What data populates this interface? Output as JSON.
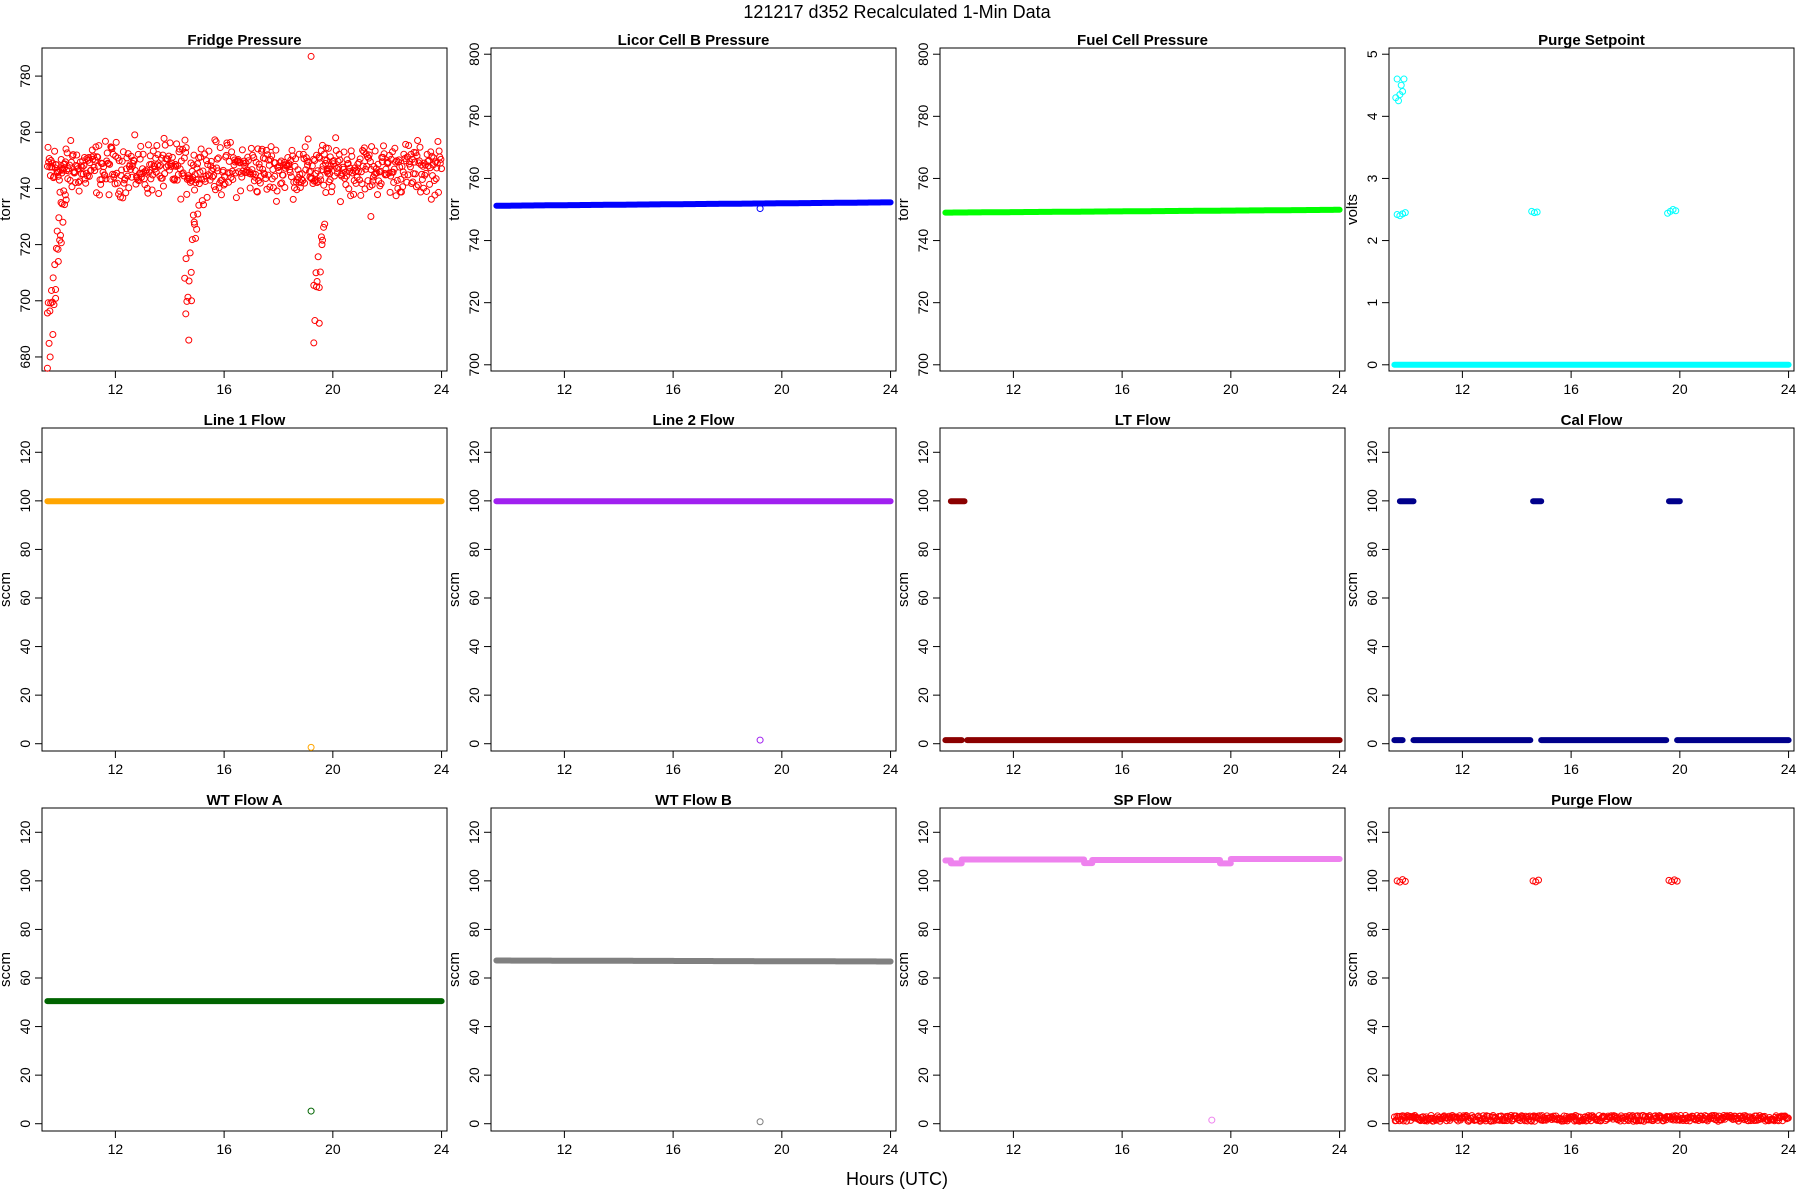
{
  "figure": {
    "title": "121217   d352   Recalculated 1-Min Data",
    "xlabel": "Hours (UTC)"
  },
  "chart_data": [
    {
      "type": "scatter",
      "title": "Fridge Pressure",
      "xlabel": "",
      "ylabel": "torr",
      "xlim": [
        9.3,
        24.2
      ],
      "ylim": [
        675,
        790
      ],
      "xticks": [
        12,
        16,
        20,
        24
      ],
      "yticks": [
        680,
        700,
        720,
        740,
        760,
        780
      ],
      "series": [
        {
          "color": "#ff0000",
          "pattern": "fridge"
        }
      ],
      "points": [
        {
          "x": 9.5,
          "y": 676
        },
        {
          "x": 9.6,
          "y": 680
        },
        {
          "x": 9.7,
          "y": 688
        },
        {
          "x": 9.8,
          "y": 704
        },
        {
          "x": 9.9,
          "y": 714
        },
        {
          "x": 10.0,
          "y": 735
        },
        {
          "x": 14.7,
          "y": 686
        },
        {
          "x": 14.8,
          "y": 700
        },
        {
          "x": 14.6,
          "y": 715
        },
        {
          "x": 14.9,
          "y": 728
        },
        {
          "x": 19.3,
          "y": 685
        },
        {
          "x": 19.5,
          "y": 692
        },
        {
          "x": 19.4,
          "y": 705
        },
        {
          "x": 19.6,
          "y": 720
        },
        {
          "x": 19.2,
          "y": 787
        },
        {
          "x": 21.4,
          "y": 730
        }
      ]
    },
    {
      "type": "scatter",
      "title": "Licor Cell B Pressure",
      "xlabel": "",
      "ylabel": "torr",
      "xlim": [
        9.3,
        24.2
      ],
      "ylim": [
        698,
        802
      ],
      "xticks": [
        12,
        16,
        20,
        24
      ],
      "yticks": [
        700,
        720,
        740,
        760,
        780,
        800
      ],
      "series": [
        {
          "color": "#0000ff",
          "pattern": "linear",
          "start": 751.2,
          "end": 752.3
        }
      ],
      "points": [
        {
          "x": 19.2,
          "y": 750.3
        }
      ]
    },
    {
      "type": "scatter",
      "title": "Fuel Cell Pressure",
      "xlabel": "",
      "ylabel": "torr",
      "xlim": [
        9.3,
        24.2
      ],
      "ylim": [
        698,
        802
      ],
      "xticks": [
        12,
        16,
        20,
        24
      ],
      "yticks": [
        700,
        720,
        740,
        760,
        780,
        800
      ],
      "series": [
        {
          "color": "#00ff00",
          "pattern": "linear",
          "start": 749.0,
          "end": 749.9
        }
      ],
      "points": []
    },
    {
      "type": "scatter",
      "title": "Purge Setpoint",
      "xlabel": "",
      "ylabel": "volts",
      "xlim": [
        9.3,
        24.2
      ],
      "ylim": [
        -0.1,
        5.1
      ],
      "xticks": [
        12,
        16,
        20,
        24
      ],
      "yticks": [
        0,
        1,
        2,
        3,
        4,
        5
      ],
      "series": [
        {
          "color": "#00ffff",
          "pattern": "constant",
          "value": 0.0
        }
      ],
      "points": [
        {
          "x": 9.55,
          "y": 4.3
        },
        {
          "x": 9.6,
          "y": 4.6
        },
        {
          "x": 9.65,
          "y": 4.25
        },
        {
          "x": 9.7,
          "y": 4.35
        },
        {
          "x": 9.75,
          "y": 4.5
        },
        {
          "x": 9.8,
          "y": 4.4
        },
        {
          "x": 9.85,
          "y": 4.6
        },
        {
          "x": 9.6,
          "y": 2.42
        },
        {
          "x": 9.7,
          "y": 2.4
        },
        {
          "x": 9.8,
          "y": 2.43
        },
        {
          "x": 9.9,
          "y": 2.45
        },
        {
          "x": 14.55,
          "y": 2.47
        },
        {
          "x": 14.65,
          "y": 2.45
        },
        {
          "x": 14.75,
          "y": 2.46
        },
        {
          "x": 19.55,
          "y": 2.44
        },
        {
          "x": 19.65,
          "y": 2.47
        },
        {
          "x": 19.75,
          "y": 2.5
        },
        {
          "x": 19.85,
          "y": 2.48
        }
      ]
    },
    {
      "type": "scatter",
      "title": "Line 1 Flow",
      "xlabel": "",
      "ylabel": "sccm",
      "xlim": [
        9.3,
        24.2
      ],
      "ylim": [
        -3,
        130
      ],
      "xticks": [
        12,
        16,
        20,
        24
      ],
      "yticks": [
        0,
        20,
        40,
        60,
        80,
        100,
        120
      ],
      "series": [
        {
          "color": "#ffa500",
          "pattern": "constant",
          "value": 99.8
        }
      ],
      "points": [
        {
          "x": 19.2,
          "y": -1.5
        }
      ]
    },
    {
      "type": "scatter",
      "title": "Line 2 Flow",
      "xlabel": "",
      "ylabel": "sccm",
      "xlim": [
        9.3,
        24.2
      ],
      "ylim": [
        -3,
        130
      ],
      "xticks": [
        12,
        16,
        20,
        24
      ],
      "yticks": [
        0,
        20,
        40,
        60,
        80,
        100,
        120
      ],
      "series": [
        {
          "color": "#a020f0",
          "pattern": "constant",
          "value": 99.8
        }
      ],
      "points": [
        {
          "x": 19.2,
          "y": 1.5
        }
      ]
    },
    {
      "type": "scatter",
      "title": "LT Flow",
      "xlabel": "",
      "ylabel": "sccm",
      "xlim": [
        9.3,
        24.2
      ],
      "ylim": [
        -3,
        130
      ],
      "xticks": [
        12,
        16,
        20,
        24
      ],
      "yticks": [
        0,
        20,
        40,
        60,
        80,
        100,
        120
      ],
      "series": [
        {
          "color": "#8b0000",
          "pattern": "segments",
          "value": 1.5,
          "segments": [
            [
              9.5,
              10.1
            ],
            [
              10.3,
              24.0
            ]
          ],
          "high": [
            [
              9.7,
              10.2,
              99.8
            ]
          ]
        }
      ],
      "points": []
    },
    {
      "type": "scatter",
      "title": "Cal Flow",
      "xlabel": "",
      "ylabel": "sccm",
      "xlim": [
        9.3,
        24.2
      ],
      "ylim": [
        -3,
        130
      ],
      "xticks": [
        12,
        16,
        20,
        24
      ],
      "yticks": [
        0,
        20,
        40,
        60,
        80,
        100,
        120
      ],
      "series": [
        {
          "color": "#00008b",
          "pattern": "segments",
          "value": 1.5,
          "segments": [
            [
              9.5,
              9.8
            ],
            [
              10.2,
              14.5
            ],
            [
              14.9,
              19.5
            ],
            [
              19.9,
              24.0
            ]
          ],
          "high": [
            [
              9.7,
              10.2,
              99.8
            ],
            [
              14.6,
              14.9,
              99.8
            ],
            [
              19.6,
              20.0,
              99.8
            ]
          ]
        }
      ],
      "points": []
    },
    {
      "type": "scatter",
      "title": "WT Flow A",
      "xlabel": "",
      "ylabel": "sccm",
      "xlim": [
        9.3,
        24.2
      ],
      "ylim": [
        -3,
        130
      ],
      "xticks": [
        12,
        16,
        20,
        24
      ],
      "yticks": [
        0,
        20,
        40,
        60,
        80,
        100,
        120
      ],
      "series": [
        {
          "color": "#006400",
          "pattern": "constant",
          "value": 50.5
        }
      ],
      "points": [
        {
          "x": 19.2,
          "y": 5.2
        }
      ]
    },
    {
      "type": "scatter",
      "title": "WT Flow B",
      "xlabel": "",
      "ylabel": "sccm",
      "xlim": [
        9.3,
        24.2
      ],
      "ylim": [
        -3,
        130
      ],
      "xticks": [
        12,
        16,
        20,
        24
      ],
      "yticks": [
        0,
        20,
        40,
        60,
        80,
        100,
        120
      ],
      "series": [
        {
          "color": "#808080",
          "pattern": "linear",
          "start": 67.2,
          "end": 66.8
        }
      ],
      "points": [
        {
          "x": 19.2,
          "y": 0.8
        }
      ]
    },
    {
      "type": "scatter",
      "title": "SP Flow",
      "xlabel": "",
      "ylabel": "sccm",
      "xlim": [
        9.3,
        24.2
      ],
      "ylim": [
        -3,
        130
      ],
      "xticks": [
        12,
        16,
        20,
        24
      ],
      "yticks": [
        0,
        20,
        40,
        60,
        80,
        100,
        120
      ],
      "series": [
        {
          "color": "#ee82ee",
          "pattern": "sp"
        }
      ],
      "points": [
        {
          "x": 19.3,
          "y": 1.5
        }
      ]
    },
    {
      "type": "scatter",
      "title": "Purge Flow",
      "xlabel": "",
      "ylabel": "sccm",
      "xlim": [
        9.3,
        24.2
      ],
      "ylim": [
        -3,
        130
      ],
      "xticks": [
        12,
        16,
        20,
        24
      ],
      "yticks": [
        0,
        20,
        40,
        60,
        80,
        100,
        120
      ],
      "series": [
        {
          "color": "#ff0000",
          "pattern": "noisy",
          "value": 2.2
        }
      ],
      "points": [
        {
          "x": 9.6,
          "y": 100
        },
        {
          "x": 9.7,
          "y": 99.5
        },
        {
          "x": 9.8,
          "y": 100.5
        },
        {
          "x": 9.9,
          "y": 99.8
        },
        {
          "x": 14.6,
          "y": 100
        },
        {
          "x": 14.7,
          "y": 99.6
        },
        {
          "x": 14.8,
          "y": 100.3
        },
        {
          "x": 19.6,
          "y": 100.2
        },
        {
          "x": 19.7,
          "y": 99.7
        },
        {
          "x": 19.8,
          "y": 100.4
        },
        {
          "x": 19.9,
          "y": 99.9
        }
      ]
    }
  ]
}
